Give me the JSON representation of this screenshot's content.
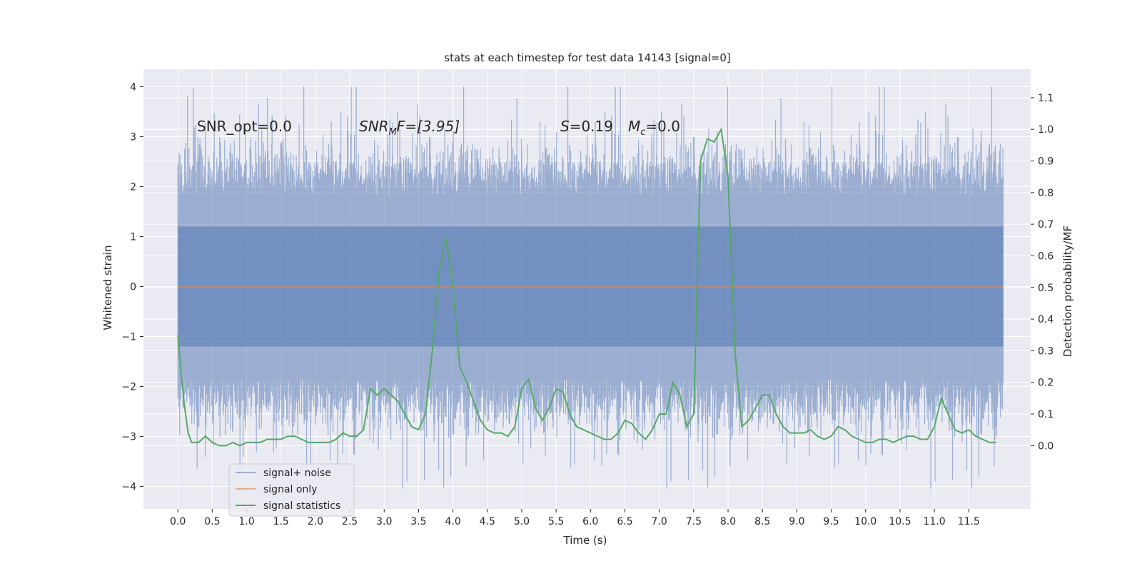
{
  "chart_data": {
    "type": "line",
    "title": "stats at each timestep for test data 14143 [signal=0]",
    "xlabel": "Time (s)",
    "ylabel_left": "Whitened strain",
    "ylabel_right": "Detection probability/MF",
    "xlim": [
      -0.5,
      12.4
    ],
    "ylim_left": [
      -4.45,
      4.35
    ],
    "ylim_right": [
      -0.2,
      1.19
    ],
    "x_ticks": [
      0.0,
      0.5,
      1.0,
      1.5,
      2.0,
      2.5,
      3.0,
      3.5,
      4.0,
      4.5,
      5.0,
      5.5,
      6.0,
      6.5,
      7.0,
      7.5,
      8.0,
      8.5,
      9.0,
      9.5,
      10.0,
      10.5,
      11.0,
      11.5
    ],
    "x_tick_labels": [
      "0.0",
      "0.5",
      "1.0",
      "1.5",
      "2.0",
      "2.5",
      "3.0",
      "3.5",
      "4.0",
      "4.5",
      "5.0",
      "5.5",
      "6.0",
      "6.5",
      "7.0",
      "7.5",
      "8.0",
      "8.5",
      "9.0",
      "9.5",
      "10.0",
      "10.5",
      "11.0",
      "11.5"
    ],
    "y_left_ticks": [
      -4,
      -3,
      -2,
      -1,
      0,
      1,
      2,
      3,
      4
    ],
    "y_left_tick_labels": [
      "−4",
      "−3",
      "−2",
      "−1",
      "0",
      "1",
      "2",
      "3",
      "4"
    ],
    "y_right_ticks": [
      0.0,
      0.1,
      0.2,
      0.3,
      0.4,
      0.5,
      0.6,
      0.7,
      0.8,
      0.9,
      1.0,
      1.1
    ],
    "y_right_tick_labels": [
      "0.0",
      "0.1",
      "0.2",
      "0.3",
      "0.4",
      "0.5",
      "0.6",
      "0.7",
      "0.8",
      "0.9",
      "1.0",
      "1.1"
    ],
    "grid": true,
    "legend_position": "lower-left",
    "annotations": {
      "snr_opt": "SNR_opt=0.0",
      "snr_mf_base": "SNR",
      "snr_mf_sub": "M",
      "snr_mf_rest": "F=[3.95]",
      "s_stat": "=0.19",
      "s_var": "S",
      "mc_var": "M",
      "mc_sub": "c",
      "mc_rest": "=0.0"
    },
    "colors": {
      "noise": "#4c72b0",
      "signal_only": "#dd8452",
      "statistics": "#55a868",
      "background": "#eaeaf2",
      "grid": "#ffffff"
    },
    "series": [
      {
        "name": "signal+ noise",
        "axis": "left",
        "style": "noise band",
        "x_range": [
          0.0,
          12.0
        ],
        "approx_envelope_max": 4.0,
        "approx_envelope_min": -4.1
      },
      {
        "name": "signal only",
        "axis": "left",
        "x_range": [
          0.0,
          12.0
        ],
        "constant_value": 0.0
      },
      {
        "name": "signal statistics",
        "axis": "right",
        "x": [
          0.0,
          0.05,
          0.1,
          0.15,
          0.2,
          0.3,
          0.4,
          0.5,
          0.6,
          0.7,
          0.8,
          0.9,
          1.0,
          1.1,
          1.2,
          1.3,
          1.4,
          1.5,
          1.6,
          1.7,
          1.8,
          1.9,
          2.0,
          2.1,
          2.2,
          2.3,
          2.4,
          2.5,
          2.6,
          2.7,
          2.8,
          2.9,
          3.0,
          3.1,
          3.2,
          3.3,
          3.4,
          3.5,
          3.6,
          3.7,
          3.8,
          3.9,
          4.0,
          4.1,
          4.2,
          4.3,
          4.4,
          4.5,
          4.6,
          4.7,
          4.8,
          4.9,
          5.0,
          5.1,
          5.2,
          5.3,
          5.4,
          5.5,
          5.6,
          5.7,
          5.8,
          5.9,
          6.0,
          6.1,
          6.2,
          6.3,
          6.4,
          6.5,
          6.6,
          6.7,
          6.8,
          6.9,
          7.0,
          7.1,
          7.2,
          7.3,
          7.4,
          7.5,
          7.6,
          7.7,
          7.8,
          7.9,
          8.0,
          8.1,
          8.2,
          8.3,
          8.4,
          8.5,
          8.6,
          8.7,
          8.8,
          8.9,
          9.0,
          9.1,
          9.2,
          9.3,
          9.4,
          9.5,
          9.6,
          9.7,
          9.8,
          9.9,
          10.0,
          10.1,
          10.2,
          10.3,
          10.4,
          10.5,
          10.6,
          10.7,
          10.8,
          10.9,
          11.0,
          11.1,
          11.2,
          11.3,
          11.4,
          11.5,
          11.6,
          11.7,
          11.8,
          11.9
        ],
        "values": [
          0.35,
          0.22,
          0.12,
          0.04,
          0.01,
          0.01,
          0.03,
          0.01,
          0.0,
          0.0,
          0.01,
          0.0,
          0.01,
          0.01,
          0.01,
          0.02,
          0.02,
          0.02,
          0.03,
          0.03,
          0.02,
          0.01,
          0.01,
          0.01,
          0.01,
          0.02,
          0.04,
          0.03,
          0.03,
          0.05,
          0.18,
          0.16,
          0.18,
          0.16,
          0.14,
          0.1,
          0.06,
          0.05,
          0.1,
          0.3,
          0.55,
          0.66,
          0.5,
          0.25,
          0.2,
          0.14,
          0.08,
          0.05,
          0.04,
          0.04,
          0.03,
          0.06,
          0.18,
          0.21,
          0.12,
          0.08,
          0.12,
          0.18,
          0.17,
          0.1,
          0.06,
          0.05,
          0.04,
          0.03,
          0.02,
          0.02,
          0.04,
          0.08,
          0.07,
          0.04,
          0.02,
          0.05,
          0.1,
          0.1,
          0.2,
          0.16,
          0.06,
          0.1,
          0.9,
          0.97,
          0.96,
          1.0,
          0.85,
          0.3,
          0.06,
          0.08,
          0.12,
          0.16,
          0.16,
          0.1,
          0.06,
          0.04,
          0.04,
          0.04,
          0.05,
          0.03,
          0.02,
          0.03,
          0.06,
          0.05,
          0.03,
          0.02,
          0.01,
          0.01,
          0.02,
          0.02,
          0.01,
          0.02,
          0.03,
          0.03,
          0.02,
          0.02,
          0.06,
          0.15,
          0.1,
          0.05,
          0.04,
          0.05,
          0.03,
          0.02,
          0.01,
          0.01
        ]
      }
    ]
  }
}
